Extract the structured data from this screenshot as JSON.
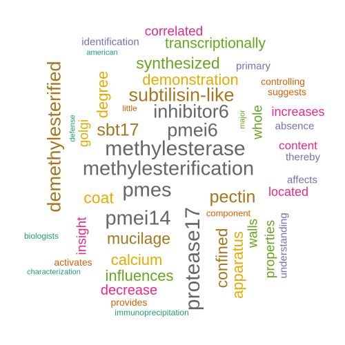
{
  "colors": {
    "magenta": "#e7298a",
    "green": "#66a61e",
    "purple": "#7570b3",
    "gold": "#e6ab02",
    "brown": "#a6761d",
    "gray": "#666666",
    "teal": "#1b9e77",
    "orange": "#d95f02"
  },
  "words": [
    {
      "text": "correlated",
      "color": "#e7298a",
      "vertical": false
    },
    {
      "text": "identification",
      "color": "#7570b3",
      "vertical": false
    },
    {
      "text": "transcriptionally",
      "color": "#66a61e",
      "vertical": false
    },
    {
      "text": "american",
      "color": "#1b9e77",
      "vertical": false
    },
    {
      "text": "synthesized",
      "color": "#66a61e",
      "vertical": false
    },
    {
      "text": "primary",
      "color": "#7570b3",
      "vertical": false
    },
    {
      "text": "demethylesterified",
      "color": "#a6761d",
      "vertical": true
    },
    {
      "text": "degree",
      "color": "#e6ab02",
      "vertical": true
    },
    {
      "text": "demonstration",
      "color": "#e6ab02",
      "vertical": false
    },
    {
      "text": "controlling",
      "color": "#d95f02",
      "vertical": false
    },
    {
      "text": "subtilisin-like",
      "color": "#a6761d",
      "vertical": false
    },
    {
      "text": "suggests",
      "color": "#d95f02",
      "vertical": false
    },
    {
      "text": "golgi",
      "color": "#e6ab02",
      "vertical": true
    },
    {
      "text": "little",
      "color": "#d95f02",
      "vertical": false
    },
    {
      "text": "inhibitor6",
      "color": "#666666",
      "vertical": false
    },
    {
      "text": "major",
      "color": "#66a61e",
      "vertical": true
    },
    {
      "text": "whole",
      "color": "#66a61e",
      "vertical": true
    },
    {
      "text": "increases",
      "color": "#e7298a",
      "vertical": false
    },
    {
      "text": "defense",
      "color": "#1b9e77",
      "vertical": true
    },
    {
      "text": "sbt17",
      "color": "#a6761d",
      "vertical": false
    },
    {
      "text": "pmei6",
      "color": "#666666",
      "vertical": false
    },
    {
      "text": "absence",
      "color": "#7570b3",
      "vertical": false
    },
    {
      "text": "methylesterase",
      "color": "#666666",
      "vertical": false
    },
    {
      "text": "content",
      "color": "#e7298a",
      "vertical": false
    },
    {
      "text": "thereby",
      "color": "#7570b3",
      "vertical": false
    },
    {
      "text": "methylesterification",
      "color": "#666666",
      "vertical": false
    },
    {
      "text": "affects",
      "color": "#7570b3",
      "vertical": false
    },
    {
      "text": "pmes",
      "color": "#666666",
      "vertical": false
    },
    {
      "text": "located",
      "color": "#e7298a",
      "vertical": false
    },
    {
      "text": "coat",
      "color": "#e6ab02",
      "vertical": false
    },
    {
      "text": "pectin",
      "color": "#a6761d",
      "vertical": false
    },
    {
      "text": "protease17",
      "color": "#666666",
      "vertical": true
    },
    {
      "text": "component",
      "color": "#d95f02",
      "vertical": false
    },
    {
      "text": "pmei14",
      "color": "#666666",
      "vertical": false
    },
    {
      "text": "understanding",
      "color": "#7570b3",
      "vertical": true
    },
    {
      "text": "insight",
      "color": "#e7298a",
      "vertical": true
    },
    {
      "text": "biologists",
      "color": "#1b9e77",
      "vertical": false
    },
    {
      "text": "mucilage",
      "color": "#a6761d",
      "vertical": false
    },
    {
      "text": "confined",
      "color": "#a6761d",
      "vertical": true
    },
    {
      "text": "apparatus",
      "color": "#e6ab02",
      "vertical": true
    },
    {
      "text": "walls",
      "color": "#66a61e",
      "vertical": true
    },
    {
      "text": "properties",
      "color": "#66a61e",
      "vertical": true
    },
    {
      "text": "activates",
      "color": "#d95f02",
      "vertical": false
    },
    {
      "text": "calcium",
      "color": "#e6ab02",
      "vertical": false
    },
    {
      "text": "characterization",
      "color": "#1b9e77",
      "vertical": false
    },
    {
      "text": "influences",
      "color": "#66a61e",
      "vertical": false
    },
    {
      "text": "decrease",
      "color": "#e7298a",
      "vertical": false
    },
    {
      "text": "provides",
      "color": "#d95f02",
      "vertical": false
    },
    {
      "text": "immunoprecipitation",
      "color": "#1b9e77",
      "vertical": false
    }
  ]
}
